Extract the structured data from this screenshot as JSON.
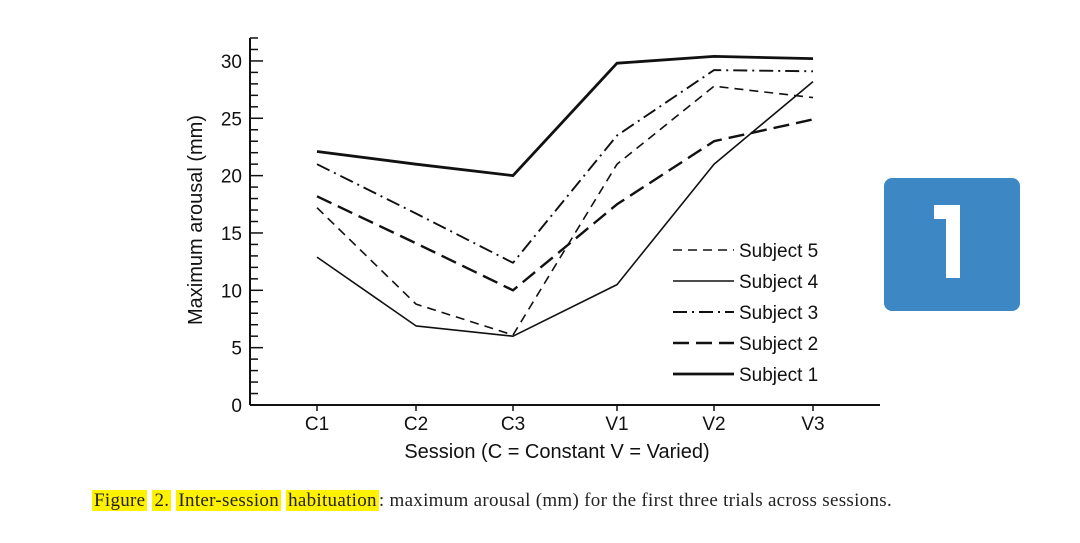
{
  "chart_data": {
    "type": "line",
    "title": "",
    "xlabel": "Session (C = Constant V = Varied)",
    "ylabel": "Maximum arousal (mm)",
    "categories": [
      "C1",
      "C2",
      "C3",
      "V1",
      "V2",
      "V3"
    ],
    "ylim": [
      0,
      32
    ],
    "yticks": [
      0,
      5,
      10,
      15,
      20,
      25,
      30
    ],
    "grid": false,
    "legend_position": "right",
    "series": [
      {
        "name": "Subject 5",
        "style": "dashed",
        "values": [
          17.2,
          8.8,
          6.1,
          21.0,
          27.8,
          26.8
        ]
      },
      {
        "name": "Subject 4",
        "style": "solid-thin",
        "values": [
          12.9,
          6.9,
          6.0,
          10.5,
          21.0,
          28.2
        ]
      },
      {
        "name": "Subject 3",
        "style": "dash-dot",
        "values": [
          21.0,
          16.7,
          12.4,
          23.5,
          29.2,
          29.1
        ]
      },
      {
        "name": "Subject 2",
        "style": "long-dash",
        "values": [
          18.2,
          14.1,
          10.0,
          17.5,
          23.0,
          24.9
        ]
      },
      {
        "name": "Subject 1",
        "style": "solid-thick",
        "values": [
          22.1,
          21.0,
          20.0,
          29.8,
          30.4,
          30.2
        ]
      }
    ]
  },
  "caption": {
    "figure_label": "Figure",
    "figure_number": "2.",
    "title": "Inter-session",
    "title2": "habituation",
    "rest": ": maximum arousal (mm) for the first three trials across sessions."
  },
  "badge": {
    "number": "1",
    "color": "#3c87c4"
  }
}
